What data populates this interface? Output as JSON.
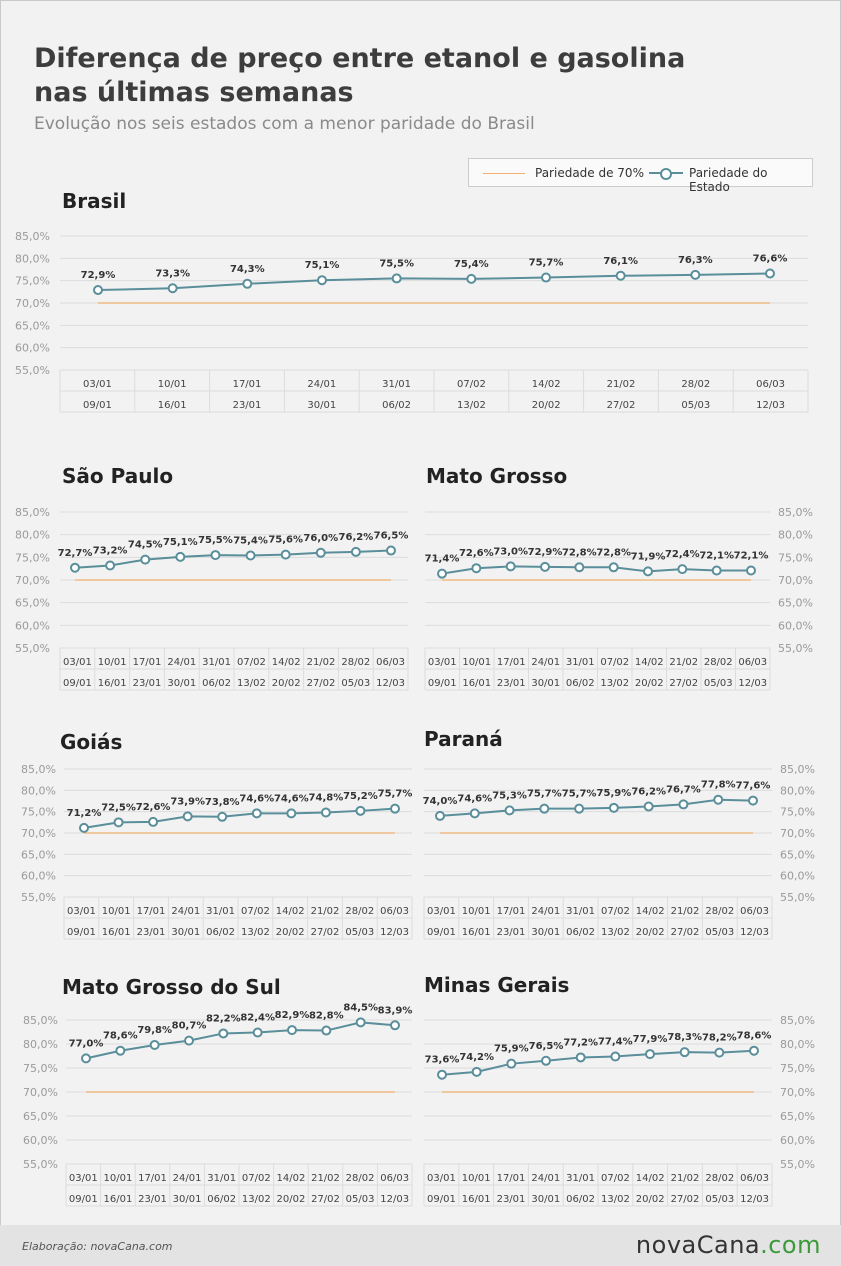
{
  "header": {
    "title": "Diferença de preço entre etanol e gasolina nas últimas semanas",
    "subtitle": "Evolução nos seis estados com a menor paridade do Brasil"
  },
  "legend": {
    "reference_label": "Pariedade de 70%",
    "state_label": "Pariedade do Estado"
  },
  "colors": {
    "state_line": "#5a8e9a",
    "reference_line": "#f0b070",
    "grid": "#dcdcdc",
    "logo_accent": "#3c9a3c"
  },
  "chart_data": [
    {
      "type": "line",
      "title": "Brasil",
      "categories_start": [
        "03/01",
        "10/01",
        "17/01",
        "24/01",
        "31/01",
        "07/02",
        "14/02",
        "21/02",
        "28/02",
        "06/03"
      ],
      "categories_end": [
        "09/01",
        "16/01",
        "23/01",
        "30/01",
        "06/02",
        "13/02",
        "20/02",
        "27/02",
        "05/03",
        "12/03"
      ],
      "y_ticks": [
        "85,0%",
        "80,0%",
        "75,0%",
        "70,0%",
        "65,0%",
        "60,0%",
        "55,0%"
      ],
      "ylim": [
        55,
        85
      ],
      "reference": 70,
      "series": [
        {
          "values": [
            72.9,
            73.3,
            74.3,
            75.1,
            75.5,
            75.4,
            75.7,
            76.1,
            76.3,
            76.6
          ],
          "labels": [
            "72,9%",
            "73,3%",
            "74,3%",
            "75,1%",
            "75,5%",
            "75,4%",
            "75,7%",
            "76,1%",
            "76,3%",
            "76,6%"
          ]
        }
      ]
    },
    {
      "type": "line",
      "title": "São Paulo",
      "categories_start": [
        "03/01",
        "10/01",
        "17/01",
        "24/01",
        "31/01",
        "07/02",
        "14/02",
        "21/02",
        "28/02",
        "06/03"
      ],
      "categories_end": [
        "09/01",
        "16/01",
        "23/01",
        "30/01",
        "06/02",
        "13/02",
        "20/02",
        "27/02",
        "05/03",
        "12/03"
      ],
      "y_ticks": [
        "85,0%",
        "80,0%",
        "75,0%",
        "70,0%",
        "65,0%",
        "60,0%",
        "55,0%"
      ],
      "ylim": [
        55,
        85
      ],
      "reference": 70,
      "series": [
        {
          "values": [
            72.7,
            73.2,
            74.5,
            75.1,
            75.5,
            75.4,
            75.6,
            76.0,
            76.2,
            76.5
          ],
          "labels": [
            "72,7%",
            "73,2%",
            "74,5%",
            "75,1%",
            "75,5%",
            "75,4%",
            "75,6%",
            "76,0%",
            "76,2%",
            "76,5%"
          ]
        }
      ]
    },
    {
      "type": "line",
      "title": "Mato Grosso",
      "categories_start": [
        "03/01",
        "10/01",
        "17/01",
        "24/01",
        "31/01",
        "07/02",
        "14/02",
        "21/02",
        "28/02",
        "06/03"
      ],
      "categories_end": [
        "09/01",
        "16/01",
        "23/01",
        "30/01",
        "06/02",
        "13/02",
        "20/02",
        "27/02",
        "05/03",
        "12/03"
      ],
      "y_ticks": [
        "85,0%",
        "80,0%",
        "75,0%",
        "70,0%",
        "65,0%",
        "60,0%",
        "55,0%"
      ],
      "ylim": [
        55,
        85
      ],
      "reference": 70,
      "series": [
        {
          "values": [
            71.4,
            72.6,
            73.0,
            72.9,
            72.8,
            72.8,
            71.9,
            72.4,
            72.1,
            72.1
          ],
          "labels": [
            "71,4%",
            "72,6%",
            "73,0%",
            "72,9%",
            "72,8%",
            "72,8%",
            "71,9%",
            "72,4%",
            "72,1%",
            "72,1%"
          ]
        }
      ]
    },
    {
      "type": "line",
      "title": "Goiás",
      "categories_start": [
        "03/01",
        "10/01",
        "17/01",
        "24/01",
        "31/01",
        "07/02",
        "14/02",
        "21/02",
        "28/02",
        "06/03"
      ],
      "categories_end": [
        "09/01",
        "16/01",
        "23/01",
        "30/01",
        "06/02",
        "13/02",
        "20/02",
        "27/02",
        "05/03",
        "12/03"
      ],
      "y_ticks": [
        "85,0%",
        "80,0%",
        "75,0%",
        "70,0%",
        "65,0%",
        "60,0%",
        "55,0%"
      ],
      "ylim": [
        55,
        85
      ],
      "reference": 70,
      "series": [
        {
          "values": [
            71.2,
            72.5,
            72.6,
            73.9,
            73.8,
            74.6,
            74.6,
            74.8,
            75.2,
            75.7
          ],
          "labels": [
            "71,2%",
            "72,5%",
            "72,6%",
            "73,9%",
            "73,8%",
            "74,6%",
            "74,6%",
            "74,8%",
            "75,2%",
            "75,7%"
          ]
        }
      ]
    },
    {
      "type": "line",
      "title": "Paraná",
      "categories_start": [
        "03/01",
        "10/01",
        "17/01",
        "24/01",
        "31/01",
        "07/02",
        "14/02",
        "21/02",
        "28/02",
        "06/03"
      ],
      "categories_end": [
        "09/01",
        "16/01",
        "23/01",
        "30/01",
        "06/02",
        "13/02",
        "20/02",
        "27/02",
        "05/03",
        "12/03"
      ],
      "y_ticks": [
        "85,0%",
        "80,0%",
        "75,0%",
        "70,0%",
        "65,0%",
        "60,0%",
        "55,0%"
      ],
      "ylim": [
        55,
        85
      ],
      "reference": 70,
      "series": [
        {
          "values": [
            74.0,
            74.6,
            75.3,
            75.7,
            75.7,
            75.9,
            76.2,
            76.7,
            77.8,
            77.6
          ],
          "labels": [
            "74,0%",
            "74,6%",
            "75,3%",
            "75,7%",
            "75,7%",
            "75,9%",
            "76,2%",
            "76,7%",
            "77,8%",
            "77,6%"
          ]
        }
      ]
    },
    {
      "type": "line",
      "title": "Mato Grosso do Sul",
      "categories_start": [
        "03/01",
        "10/01",
        "17/01",
        "24/01",
        "31/01",
        "07/02",
        "14/02",
        "21/02",
        "28/02",
        "06/03"
      ],
      "categories_end": [
        "09/01",
        "16/01",
        "23/01",
        "30/01",
        "06/02",
        "13/02",
        "20/02",
        "27/02",
        "05/03",
        "12/03"
      ],
      "y_ticks": [
        "85,0%",
        "80,0%",
        "75,0%",
        "70,0%",
        "65,0%",
        "60,0%",
        "55,0%"
      ],
      "ylim": [
        55,
        85
      ],
      "reference": 70,
      "series": [
        {
          "values": [
            77.0,
            78.6,
            79.8,
            80.7,
            82.2,
            82.4,
            82.9,
            82.8,
            84.5,
            83.9
          ],
          "labels": [
            "77,0%",
            "78,6%",
            "79,8%",
            "80,7%",
            "82,2%",
            "82,4%",
            "82,9%",
            "82,8%",
            "84,5%",
            "83,9%"
          ]
        }
      ]
    },
    {
      "type": "line",
      "title": "Minas Gerais",
      "categories_start": [
        "03/01",
        "10/01",
        "17/01",
        "24/01",
        "31/01",
        "07/02",
        "14/02",
        "21/02",
        "28/02",
        "06/03"
      ],
      "categories_end": [
        "09/01",
        "16/01",
        "23/01",
        "30/01",
        "06/02",
        "13/02",
        "20/02",
        "27/02",
        "05/03",
        "12/03"
      ],
      "y_ticks": [
        "85,0%",
        "80,0%",
        "75,0%",
        "70,0%",
        "65,0%",
        "60,0%",
        "55,0%"
      ],
      "ylim": [
        55,
        85
      ],
      "reference": 70,
      "series": [
        {
          "values": [
            73.6,
            74.2,
            75.9,
            76.5,
            77.2,
            77.4,
            77.9,
            78.3,
            78.2,
            78.6
          ],
          "labels": [
            "73,6%",
            "74,2%",
            "75,9%",
            "76,5%",
            "77,2%",
            "77,4%",
            "77,9%",
            "78,3%",
            "78,2%",
            "78,6%"
          ]
        }
      ]
    }
  ],
  "footer": {
    "credit": "Elaboração: novaCana.com",
    "logo_main": "novaCana",
    "logo_accent": ".com"
  }
}
